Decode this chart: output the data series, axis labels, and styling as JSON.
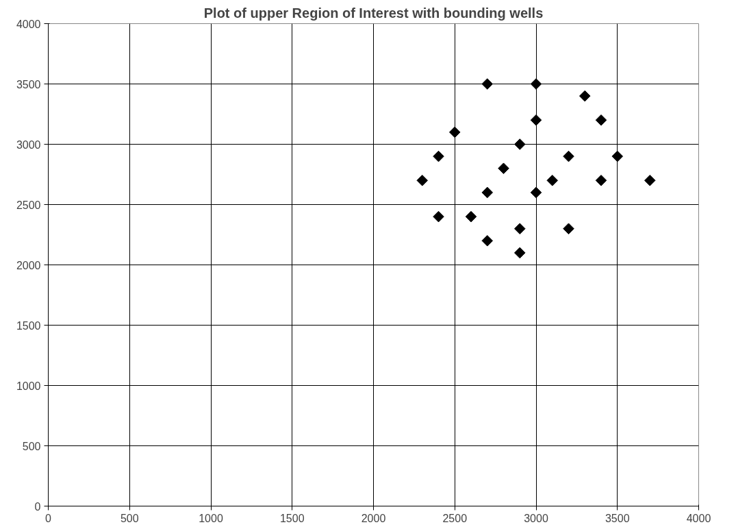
{
  "chart_data": {
    "type": "scatter",
    "title": "Plot of upper Region of Interest with bounding wells",
    "x": [
      2300,
      2400,
      2400,
      2500,
      2600,
      2700,
      2700,
      2700,
      2800,
      2900,
      2900,
      2900,
      3000,
      3000,
      3000,
      3100,
      3200,
      3200,
      3300,
      3400,
      3400,
      3500,
      3700
    ],
    "values": [
      2700,
      2900,
      2400,
      3100,
      2400,
      3500,
      2600,
      2200,
      2800,
      3000,
      2300,
      2100,
      3500,
      3200,
      2600,
      2700,
      2900,
      2300,
      3400,
      3200,
      2700,
      2900,
      2700
    ],
    "color": "#000000",
    "marker": "diamond",
    "xlim": [
      0,
      4000
    ],
    "ylim": [
      0,
      4000
    ],
    "xticks": [
      0,
      500,
      1000,
      1500,
      2000,
      2500,
      3000,
      3500,
      4000
    ],
    "yticks": [
      0,
      500,
      1000,
      1500,
      2000,
      2500,
      3000,
      3500,
      4000
    ],
    "grid": true
  }
}
